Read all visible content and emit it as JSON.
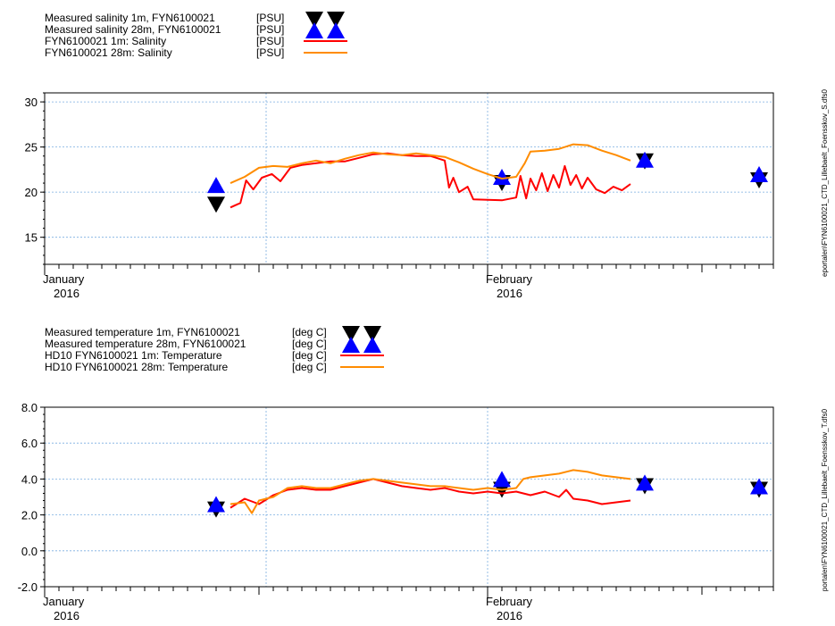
{
  "chart_data": [
    {
      "type": "line",
      "title": "",
      "xlabel": "",
      "ylabel": "",
      "ylim": [
        12,
        31
      ],
      "yticks": [
        15,
        20,
        25,
        30
      ],
      "xlim": [
        "2016-01-01",
        "2016-02-21"
      ],
      "x_tick_labels": [
        {
          "month": "January",
          "year": "2016",
          "date": "2016-01-01"
        },
        {
          "month": "February",
          "year": "2016",
          "date": "2016-02-01"
        }
      ],
      "grid": true,
      "legend": {
        "placement": "top-left",
        "entries": [
          {
            "name": "Measured salinity 1m, FYN6100021",
            "unit": "[PSU]",
            "marker": "triangle-down",
            "color": "#000000"
          },
          {
            "name": "Measured salinity 28m, FYN6100021",
            "unit": "[PSU]",
            "marker": "triangle-up",
            "color": "#0000FF"
          },
          {
            "name": "FYN6100021 1m: Salinity",
            "unit": "[PSU]",
            "line": true,
            "color": "#FF0000"
          },
          {
            "name": "FYN6100021 28m: Salinity",
            "unit": "[PSU]",
            "line": true,
            "color": "#FF8C00"
          }
        ]
      },
      "side_label": "eportalen\\FYN6100021_CTD_Lillebaelt_Foensskov_S.dfs0",
      "series": [
        {
          "name": "Measured salinity 1m, FYN6100021",
          "color": "#000000",
          "marker": "triangle-down",
          "points": [
            [
              "2016-01-13",
              18.6
            ],
            [
              "2016-02-02",
              21.0
            ],
            [
              "2016-02-12",
              23.4
            ],
            [
              "2016-02-20",
              21.3
            ]
          ]
        },
        {
          "name": "Measured salinity 28m, FYN6100021",
          "color": "#0000FF",
          "marker": "triangle-up",
          "points": [
            [
              "2016-01-13",
              20.8
            ],
            [
              "2016-02-02",
              21.7
            ],
            [
              "2016-02-12",
              23.6
            ],
            [
              "2016-02-20",
              22.0
            ]
          ]
        },
        {
          "name": "FYN6100021 1m: Salinity",
          "color": "#FF0000",
          "line": true,
          "points": [
            [
              "2016-01-14",
              18.3
            ],
            [
              "2016-01-14.7",
              18.8
            ],
            [
              "2016-01-15.1",
              21.3
            ],
            [
              "2016-01-15.6",
              20.3
            ],
            [
              "2016-01-16.2",
              21.6
            ],
            [
              "2016-01-16.9",
              22.0
            ],
            [
              "2016-01-17.5",
              21.2
            ],
            [
              "2016-01-18.2",
              22.7
            ],
            [
              "2016-01-19",
              23.0
            ],
            [
              "2016-01-20",
              23.2
            ],
            [
              "2016-01-21",
              23.4
            ],
            [
              "2016-01-22",
              23.4
            ],
            [
              "2016-01-23",
              23.8
            ],
            [
              "2016-01-24",
              24.2
            ],
            [
              "2016-01-25",
              24.3
            ],
            [
              "2016-01-26",
              24.1
            ],
            [
              "2016-01-27",
              24.0
            ],
            [
              "2016-01-28",
              24.0
            ],
            [
              "2016-01-29",
              23.5
            ],
            [
              "2016-01-29.3",
              20.5
            ],
            [
              "2016-01-29.6",
              21.6
            ],
            [
              "2016-01-30",
              20.0
            ],
            [
              "2016-01-30.6",
              20.6
            ],
            [
              "2016-01-31",
              19.2
            ],
            [
              "2016-02-02",
              19.1
            ],
            [
              "2016-02-03",
              19.4
            ],
            [
              "2016-02-03.3",
              21.8
            ],
            [
              "2016-02-03.7",
              19.3
            ],
            [
              "2016-02-04",
              21.5
            ],
            [
              "2016-02-04.4",
              20.2
            ],
            [
              "2016-02-04.8",
              22.1
            ],
            [
              "2016-02-05.2",
              20.1
            ],
            [
              "2016-02-05.6",
              21.9
            ],
            [
              "2016-02-06",
              20.5
            ],
            [
              "2016-02-06.4",
              22.9
            ],
            [
              "2016-02-06.8",
              20.8
            ],
            [
              "2016-02-07.2",
              21.9
            ],
            [
              "2016-02-07.6",
              20.4
            ],
            [
              "2016-02-08",
              21.6
            ],
            [
              "2016-02-08.6",
              20.3
            ],
            [
              "2016-02-09.2",
              19.9
            ],
            [
              "2016-02-09.8",
              20.6
            ],
            [
              "2016-02-10.4",
              20.2
            ],
            [
              "2016-02-11",
              20.9
            ]
          ]
        },
        {
          "name": "FYN6100021 28m: Salinity",
          "color": "#FF8C00",
          "line": true,
          "points": [
            [
              "2016-01-14",
              21.0
            ],
            [
              "2016-01-15",
              21.7
            ],
            [
              "2016-01-16",
              22.7
            ],
            [
              "2016-01-17",
              22.9
            ],
            [
              "2016-01-18",
              22.8
            ],
            [
              "2016-01-19",
              23.2
            ],
            [
              "2016-01-20",
              23.5
            ],
            [
              "2016-01-21",
              23.2
            ],
            [
              "2016-01-22",
              23.7
            ],
            [
              "2016-01-23",
              24.1
            ],
            [
              "2016-01-24",
              24.4
            ],
            [
              "2016-01-25",
              24.2
            ],
            [
              "2016-01-26",
              24.1
            ],
            [
              "2016-01-27",
              24.3
            ],
            [
              "2016-01-28",
              24.1
            ],
            [
              "2016-01-29",
              23.9
            ],
            [
              "2016-01-30",
              23.3
            ],
            [
              "2016-01-31",
              22.6
            ],
            [
              "2016-02-01",
              22.0
            ],
            [
              "2016-02-02",
              21.5
            ],
            [
              "2016-02-03",
              21.7
            ],
            [
              "2016-02-03.6",
              23.2
            ],
            [
              "2016-02-04",
              24.5
            ],
            [
              "2016-02-05",
              24.6
            ],
            [
              "2016-02-06",
              24.8
            ],
            [
              "2016-02-07",
              25.3
            ],
            [
              "2016-02-08",
              25.2
            ],
            [
              "2016-02-09",
              24.6
            ],
            [
              "2016-02-10",
              24.1
            ],
            [
              "2016-02-11",
              23.5
            ]
          ]
        }
      ]
    },
    {
      "type": "line",
      "title": "",
      "xlabel": "",
      "ylabel": "",
      "ylim": [
        -2.0,
        8.0
      ],
      "yticks": [
        "-2.0",
        "0.0",
        "2.0",
        "4.0",
        "6.0",
        "8.0"
      ],
      "xlim": [
        "2016-01-01",
        "2016-02-21"
      ],
      "x_tick_labels": [
        {
          "month": "January",
          "year": "2016",
          "date": "2016-01-01"
        },
        {
          "month": "February",
          "year": "2016",
          "date": "2016-02-01"
        }
      ],
      "grid": true,
      "legend": {
        "placement": "top-left",
        "entries": [
          {
            "name": "Measured temperature 1m, FYN6100021",
            "unit": "[deg C]",
            "marker": "triangle-down",
            "color": "#000000"
          },
          {
            "name": "Measured temperature 28m, FYN6100021",
            "unit": "[deg C]",
            "marker": "triangle-up",
            "color": "#0000FF"
          },
          {
            "name": "HD10 FYN6100021 1m: Temperature",
            "unit": "[deg C]",
            "line": true,
            "color": "#FF0000"
          },
          {
            "name": "HD10 FYN6100021 28m: Temperature",
            "unit": "[deg C]",
            "line": true,
            "color": "#FF8C00"
          }
        ]
      },
      "side_label": "portalen\\FYN6100021_CTD_Lillebaelt_Foensskov_T.dfs0",
      "series": [
        {
          "name": "Measured temperature 1m, FYN6100021",
          "color": "#000000",
          "marker": "triangle-down",
          "points": [
            [
              "2016-01-13",
              2.3
            ],
            [
              "2016-02-02",
              3.4
            ],
            [
              "2016-02-12",
              3.6
            ],
            [
              "2016-02-20",
              3.4
            ]
          ]
        },
        {
          "name": "Measured temperature 28m, FYN6100021",
          "color": "#0000FF",
          "marker": "triangle-up",
          "points": [
            [
              "2016-01-13",
              2.6
            ],
            [
              "2016-02-02",
              4.0
            ],
            [
              "2016-02-12",
              3.8
            ],
            [
              "2016-02-20",
              3.6
            ]
          ]
        },
        {
          "name": "HD10 FYN6100021 1m: Temperature",
          "color": "#FF0000",
          "line": true,
          "points": [
            [
              "2016-01-14",
              2.4
            ],
            [
              "2016-01-15",
              2.9
            ],
            [
              "2016-01-16",
              2.6
            ],
            [
              "2016-01-17",
              3.1
            ],
            [
              "2016-01-18",
              3.4
            ],
            [
              "2016-01-19",
              3.5
            ],
            [
              "2016-01-20",
              3.4
            ],
            [
              "2016-01-21",
              3.4
            ],
            [
              "2016-01-22",
              3.6
            ],
            [
              "2016-01-23",
              3.8
            ],
            [
              "2016-01-24",
              4.0
            ],
            [
              "2016-01-25",
              3.8
            ],
            [
              "2016-01-26",
              3.6
            ],
            [
              "2016-01-27",
              3.5
            ],
            [
              "2016-01-28",
              3.4
            ],
            [
              "2016-01-29",
              3.5
            ],
            [
              "2016-01-30",
              3.3
            ],
            [
              "2016-01-31",
              3.2
            ],
            [
              "2016-02-01",
              3.3
            ],
            [
              "2016-02-02",
              3.2
            ],
            [
              "2016-02-03",
              3.3
            ],
            [
              "2016-02-04",
              3.1
            ],
            [
              "2016-02-05",
              3.3
            ],
            [
              "2016-02-06",
              3.0
            ],
            [
              "2016-02-06.5",
              3.4
            ],
            [
              "2016-02-07",
              2.9
            ],
            [
              "2016-02-08",
              2.8
            ],
            [
              "2016-02-09",
              2.6
            ],
            [
              "2016-02-10",
              2.7
            ],
            [
              "2016-02-11",
              2.8
            ]
          ]
        },
        {
          "name": "HD10 FYN6100021 28m: Temperature",
          "color": "#FF8C00",
          "line": true,
          "points": [
            [
              "2016-01-14",
              2.6
            ],
            [
              "2016-01-15",
              2.7
            ],
            [
              "2016-01-15.5",
              2.1
            ],
            [
              "2016-01-16",
              2.8
            ],
            [
              "2016-01-17",
              3.0
            ],
            [
              "2016-01-18",
              3.5
            ],
            [
              "2016-01-19",
              3.6
            ],
            [
              "2016-01-20",
              3.5
            ],
            [
              "2016-01-21",
              3.5
            ],
            [
              "2016-01-22",
              3.7
            ],
            [
              "2016-01-23",
              3.9
            ],
            [
              "2016-01-24",
              4.0
            ],
            [
              "2016-01-25",
              3.9
            ],
            [
              "2016-01-26",
              3.8
            ],
            [
              "2016-01-27",
              3.7
            ],
            [
              "2016-01-28",
              3.6
            ],
            [
              "2016-01-29",
              3.6
            ],
            [
              "2016-01-30",
              3.5
            ],
            [
              "2016-01-31",
              3.4
            ],
            [
              "2016-02-01",
              3.5
            ],
            [
              "2016-02-02",
              3.4
            ],
            [
              "2016-02-03",
              3.5
            ],
            [
              "2016-02-03.5",
              4.0
            ],
            [
              "2016-02-04",
              4.1
            ],
            [
              "2016-02-05",
              4.2
            ],
            [
              "2016-02-06",
              4.3
            ],
            [
              "2016-02-07",
              4.5
            ],
            [
              "2016-02-08",
              4.4
            ],
            [
              "2016-02-09",
              4.2
            ],
            [
              "2016-02-10",
              4.1
            ],
            [
              "2016-02-11",
              4.0
            ]
          ]
        }
      ]
    }
  ]
}
